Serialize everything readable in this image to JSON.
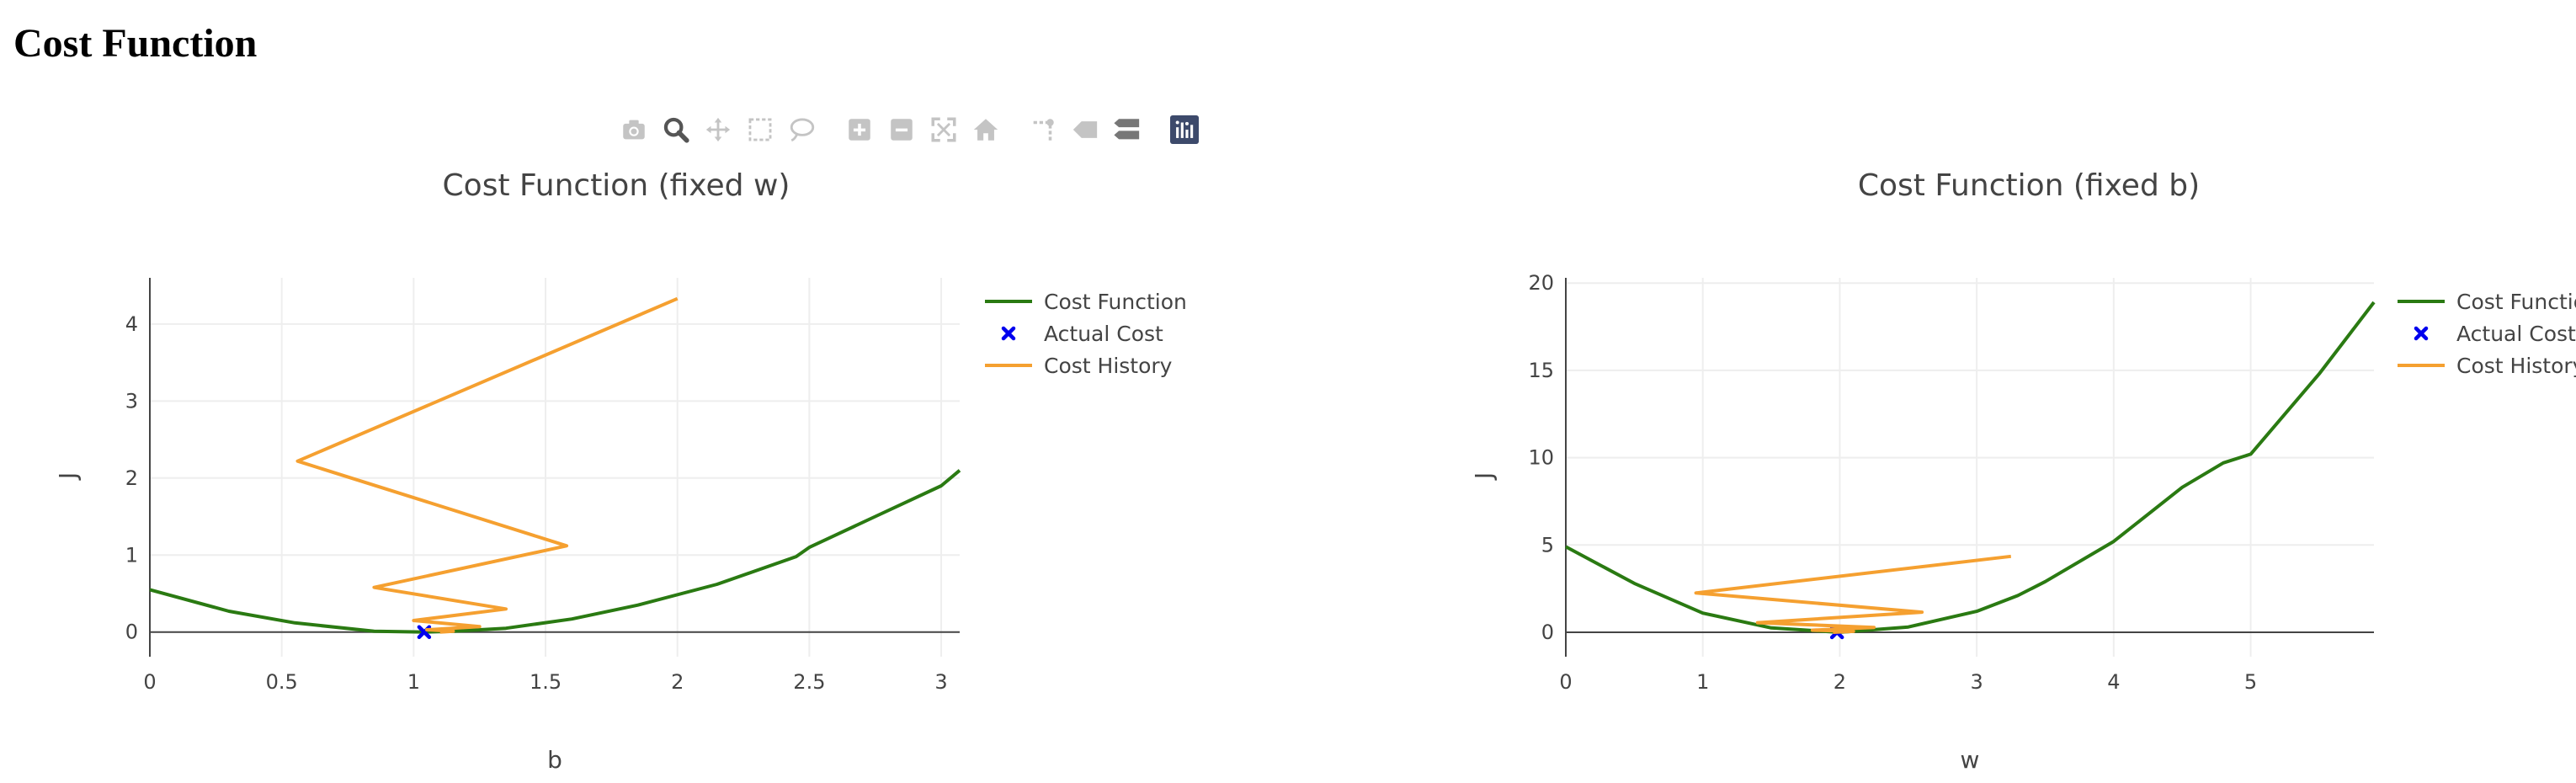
{
  "page": {
    "title": "Cost Function"
  },
  "modebar": {
    "buttons": [
      {
        "name": "camera-icon",
        "active": false
      },
      {
        "name": "zoom-icon",
        "active": true
      },
      {
        "name": "pan-icon",
        "active": false
      },
      {
        "name": "box-select-icon",
        "active": false
      },
      {
        "name": "lasso-select-icon",
        "active": false
      },
      {
        "name": "zoom-in-icon",
        "active": false
      },
      {
        "name": "zoom-out-icon",
        "active": false
      },
      {
        "name": "autoscale-icon",
        "active": false
      },
      {
        "name": "reset-axes-icon",
        "active": false
      },
      {
        "name": "spike-lines-icon",
        "active": false
      },
      {
        "name": "hover-closest-icon",
        "active": false
      },
      {
        "name": "hover-compare-icon",
        "active": false
      },
      {
        "name": "plotly-logo-icon",
        "active": false
      }
    ]
  },
  "colors": {
    "cost_function": "#2a7a12",
    "actual_cost": "#0000ee",
    "cost_history": "#f5a030",
    "text": "#444444",
    "grid": "#eeeeee"
  },
  "chart_data": [
    {
      "type": "line",
      "title": "Cost Function (fixed w)",
      "xlabel": "b",
      "ylabel": "J",
      "xlim": [
        0,
        3.07
      ],
      "ylim": [
        -0.32,
        4.6
      ],
      "xticks": [
        0,
        0.5,
        1,
        1.5,
        2,
        2.5,
        3
      ],
      "xtick_labels": [
        "0",
        "0.5",
        "1",
        "1.5",
        "2",
        "2.5",
        "3"
      ],
      "yticks": [
        0,
        1,
        2,
        3,
        4
      ],
      "ytick_labels": [
        "0",
        "1",
        "2",
        "3",
        "4"
      ],
      "grid": true,
      "legend": "right",
      "series": [
        {
          "name": "Cost Function",
          "mode": "lines",
          "x": [
            0,
            0.3,
            0.55,
            0.85,
            1.05,
            1.15,
            1.35,
            1.6,
            1.85,
            2.15,
            2.45,
            2.5,
            2.75,
            3.0,
            3.07
          ],
          "y": [
            0.55,
            0.27,
            0.12,
            0.01,
            0.0,
            0.01,
            0.05,
            0.17,
            0.35,
            0.62,
            0.98,
            1.1,
            1.5,
            1.9,
            2.1
          ]
        },
        {
          "name": "Actual Cost",
          "mode": "markers",
          "x": [
            1.04
          ],
          "y": [
            0.0
          ]
        },
        {
          "name": "Cost History",
          "mode": "lines",
          "x": [
            2.0,
            0.56,
            1.58,
            0.85,
            1.35,
            1.0,
            1.25,
            1.05,
            1.15,
            1.1
          ],
          "y": [
            4.33,
            2.22,
            1.12,
            0.58,
            0.3,
            0.15,
            0.07,
            0.03,
            0.01,
            0.0
          ]
        }
      ]
    },
    {
      "type": "line",
      "title": "Cost Function (fixed b)",
      "xlabel": "w",
      "ylabel": "J",
      "xlim": [
        0,
        5.9
      ],
      "ylim": [
        -1.4,
        20.3
      ],
      "xticks": [
        0,
        1,
        2,
        3,
        4,
        5
      ],
      "xtick_labels": [
        "0",
        "1",
        "2",
        "3",
        "4",
        "5"
      ],
      "yticks": [
        0,
        5,
        10,
        15,
        20
      ],
      "ytick_labels": [
        "0",
        "5",
        "10",
        "15",
        "20"
      ],
      "grid": true,
      "legend": "right",
      "series": [
        {
          "name": "Cost Function",
          "mode": "lines",
          "x": [
            0,
            0.5,
            1.0,
            1.5,
            2.0,
            2.5,
            3.0,
            3.3,
            3.5,
            4.0,
            4.5,
            4.8,
            5.0,
            5.5,
            5.9
          ],
          "y": [
            4.9,
            2.8,
            1.1,
            0.25,
            0.0,
            0.3,
            1.2,
            2.1,
            2.9,
            5.2,
            8.3,
            9.7,
            10.2,
            14.8,
            18.9
          ]
        },
        {
          "name": "Actual Cost",
          "mode": "markers",
          "x": [
            1.98
          ],
          "y": [
            0.0
          ]
        },
        {
          "name": "Cost History",
          "mode": "lines",
          "x": [
            3.25,
            0.95,
            2.6,
            1.4,
            2.25,
            1.8,
            2.1,
            1.95
          ],
          "y": [
            4.35,
            2.25,
            1.15,
            0.55,
            0.28,
            0.12,
            0.05,
            0.0
          ]
        }
      ]
    }
  ]
}
